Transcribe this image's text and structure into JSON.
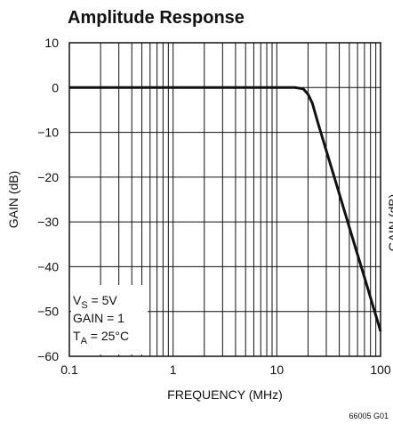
{
  "chart_data": {
    "type": "line",
    "title": "Amplitude Response",
    "x_label": "FREQUENCY (MHz)",
    "y_label": "GAIN (dB)",
    "x_log": true,
    "grid": true,
    "x": [
      0.1,
      1,
      10,
      15,
      18,
      20,
      22,
      25,
      30,
      40,
      50,
      60,
      70,
      80,
      100
    ],
    "series": [
      {
        "color": "#111111",
        "values": [
          0,
          0,
          0,
          0,
          -0.3,
          -1.5,
          -3.5,
          -8,
          -14.1,
          -23.7,
          -31.2,
          -37.3,
          -42.4,
          -46.9,
          -54.4
        ]
      }
    ],
    "xlim": [
      0.1,
      100
    ],
    "xticks": [
      0.1,
      1,
      10,
      100
    ],
    "xminor_ticks": [
      0.2,
      0.3,
      0.4,
      0.5,
      0.6,
      0.7,
      0.8,
      0.9,
      2,
      3,
      4,
      5,
      6,
      7,
      8,
      9,
      20,
      30,
      40,
      50,
      60,
      70,
      80,
      90
    ],
    "ylim": [
      -60,
      10
    ],
    "yticks": [
      10,
      0,
      {
        "value": -10,
        "label": "−10"
      },
      {
        "value": -20,
        "label": "−20"
      },
      {
        "value": -30,
        "label": "−30"
      },
      {
        "value": -40,
        "label": "−40"
      },
      {
        "value": -50,
        "label": "−50"
      },
      {
        "value": -60,
        "label": "−60"
      }
    ],
    "annotations": [
      [
        "V",
        "S",
        " = 5V"
      ],
      [
        "GAIN = 1"
      ],
      [
        "T",
        "A",
        " = 25°C"
      ]
    ],
    "footnote": "66005 G01",
    "neighbor_label": "GAIN (dB)"
  }
}
